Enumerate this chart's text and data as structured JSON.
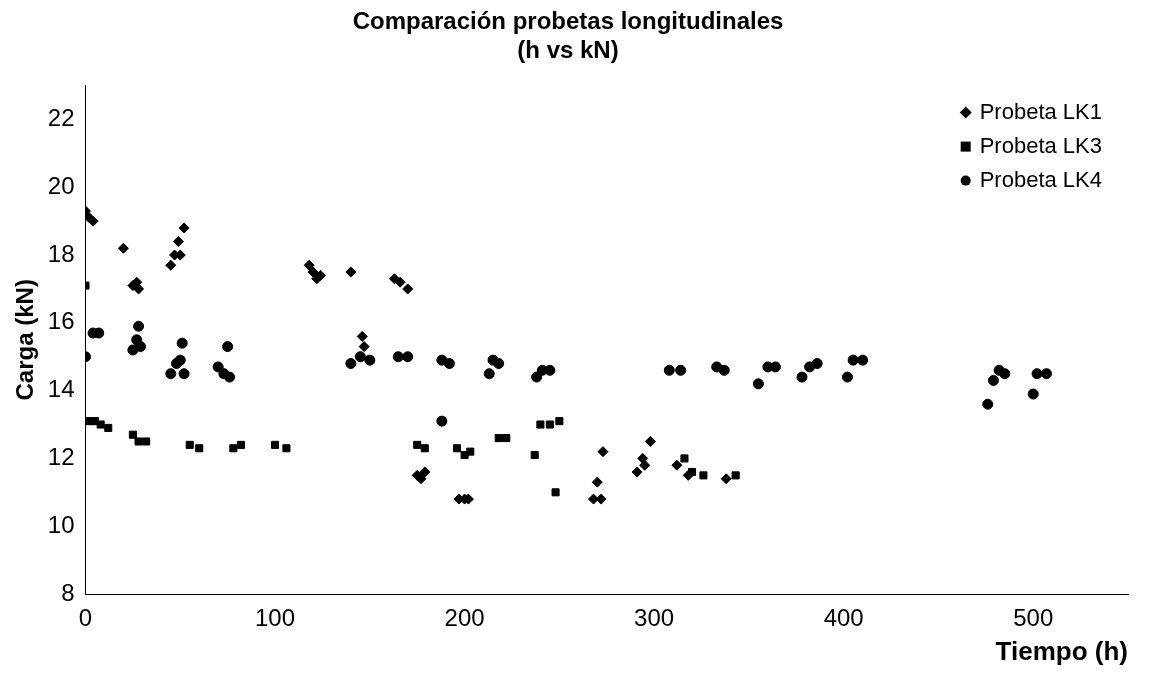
{
  "chart_data": {
    "type": "scatter",
    "title": "Comparación probetas longitudinales",
    "subtitle": "(h vs kN)",
    "xlabel": "Tiempo (h)",
    "ylabel": "Carga (kN)",
    "xlim": [
      0,
      550
    ],
    "xticks": [
      0,
      100,
      200,
      300,
      400,
      500
    ],
    "ylim": [
      8,
      23
    ],
    "yticks": [
      8,
      10,
      12,
      14,
      16,
      18,
      20,
      22
    ],
    "grid": false,
    "legend": "top right",
    "series": [
      {
        "name": "Probeta LK1",
        "color": "#000000",
        "marker": "diamond",
        "x": [
          0,
          2,
          4,
          20,
          25,
          27,
          28,
          45,
          47,
          49,
          50,
          52,
          118,
          120,
          122,
          124,
          140,
          145,
          146,
          147,
          163,
          166,
          170,
          175,
          177,
          179,
          197,
          200,
          202,
          268,
          270,
          272,
          273,
          291,
          294,
          295,
          298,
          312,
          318,
          338
        ],
        "values": [
          19.3,
          19.1,
          19.0,
          18.2,
          17.1,
          17.2,
          17.0,
          17.7,
          18.0,
          18.4,
          18.0,
          18.8,
          17.7,
          17.5,
          17.3,
          17.4,
          17.5,
          15.0,
          15.6,
          15.3,
          17.3,
          17.2,
          17.0,
          11.5,
          11.4,
          11.6,
          10.8,
          10.8,
          10.8,
          10.8,
          11.3,
          10.8,
          12.2,
          11.6,
          12.0,
          11.8,
          12.5,
          11.8,
          11.5,
          11.4
        ]
      },
      {
        "name": "Probeta LK3",
        "color": "#000000",
        "marker": "square",
        "x": [
          0,
          2,
          5,
          8,
          12,
          25,
          28,
          32,
          55,
          60,
          78,
          82,
          100,
          106,
          175,
          179,
          196,
          200,
          203,
          218,
          222,
          237,
          240,
          245,
          248,
          250,
          316,
          320,
          326,
          343
        ],
        "values": [
          17.1,
          13.1,
          13.1,
          13.0,
          12.9,
          12.7,
          12.5,
          12.5,
          12.4,
          12.3,
          12.3,
          12.4,
          12.4,
          12.3,
          12.4,
          12.3,
          12.3,
          12.1,
          12.2,
          12.6,
          12.6,
          12.1,
          13.0,
          13.0,
          11.0,
          13.1,
          12.0,
          11.6,
          11.5,
          11.5
        ]
      },
      {
        "name": "Probeta LK4",
        "color": "#000000",
        "marker": "circle",
        "x": [
          0,
          4,
          7,
          25,
          27,
          28,
          29,
          45,
          48,
          50,
          51,
          52,
          70,
          73,
          75,
          76,
          140,
          145,
          150,
          165,
          170,
          188,
          188,
          192,
          213,
          215,
          218,
          238,
          241,
          245,
          308,
          314,
          333,
          337,
          355,
          360,
          364,
          378,
          382,
          386,
          402,
          405,
          410,
          476,
          479,
          482,
          485,
          500,
          502,
          507
        ],
        "values": [
          15.0,
          15.7,
          15.7,
          15.2,
          15.5,
          15.9,
          15.3,
          14.5,
          14.8,
          14.9,
          15.4,
          14.5,
          14.7,
          14.5,
          15.3,
          14.4,
          14.8,
          15.0,
          14.9,
          15.0,
          15.0,
          13.1,
          14.9,
          14.8,
          14.5,
          14.9,
          14.8,
          14.4,
          14.6,
          14.6,
          14.6,
          14.6,
          14.7,
          14.6,
          14.2,
          14.7,
          14.7,
          14.4,
          14.7,
          14.8,
          14.4,
          14.9,
          14.9,
          13.6,
          14.3,
          14.6,
          14.5,
          13.9,
          14.5,
          14.5
        ]
      }
    ]
  }
}
